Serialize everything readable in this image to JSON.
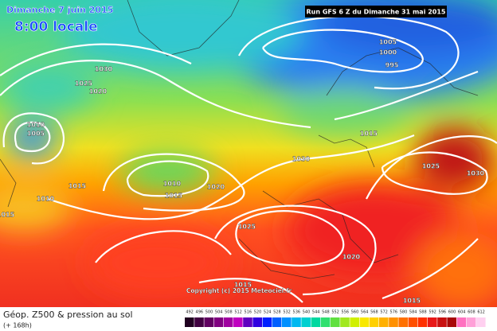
{
  "header": {
    "date": "Dimanche 7 juin 2015",
    "time": "8:00 locale",
    "run": "Run GFS 6 Z du Dimanche 31 mai 2015"
  },
  "isobar_labels": [
    "1030",
    "1025",
    "1020",
    "1010",
    "1005",
    "1015",
    "1010",
    "1015",
    "1010",
    "1015",
    "1020",
    "1030",
    "1005",
    "1000",
    "995",
    "1015",
    "1025",
    "1030",
    "1025",
    "1020",
    "1015",
    "1015"
  ],
  "copyright": "Copyright (c) 2015 Meteociel.fr",
  "legend": {
    "title": "Géop. Z500 & pression au sol",
    "subtitle": "(+ 168h)",
    "scale": [
      "492",
      "496",
      "500",
      "504",
      "508",
      "512",
      "516",
      "520",
      "524",
      "528",
      "532",
      "536",
      "540",
      "544",
      "548",
      "552",
      "556",
      "560",
      "564",
      "568",
      "572",
      "576",
      "580",
      "584",
      "588",
      "592",
      "596",
      "600",
      "604",
      "608",
      "612"
    ]
  }
}
